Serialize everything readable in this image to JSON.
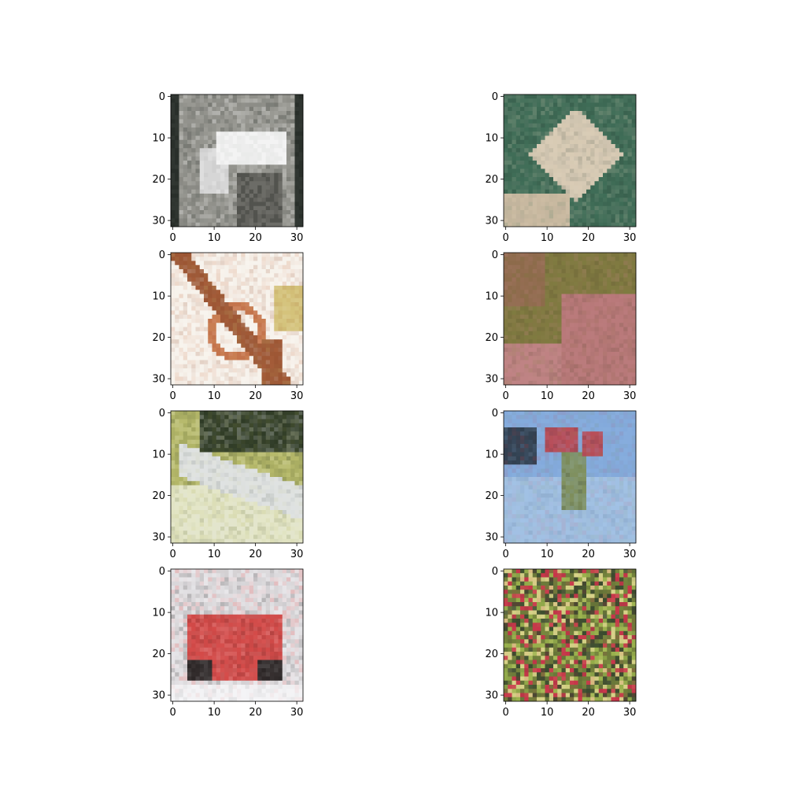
{
  "figure": {
    "background": "#ffffff",
    "panel_count": 8,
    "grid": {
      "rows": 4,
      "cols": 2
    },
    "axis": {
      "xlim": [
        -0.5,
        31.5
      ],
      "ylim": [
        31.5,
        -0.5
      ],
      "xticks": [
        0,
        10,
        20,
        30
      ],
      "yticks": [
        0,
        10,
        20,
        30
      ]
    },
    "panels": [
      {
        "name": "panel-1",
        "subject": "gray-white-object",
        "palette": [
          "#1e241f",
          "#dcdcdc",
          "#9a9a94",
          "#f4f4f4",
          "#5a5a55"
        ]
      },
      {
        "name": "panel-2",
        "subject": "beige-object-on-green",
        "palette": [
          "#3f6d57",
          "#d9ccb6",
          "#8f8f86",
          "#2a3a31",
          "#c9b9a0"
        ]
      },
      {
        "name": "panel-3",
        "subject": "pale-orange-shapes",
        "palette": [
          "#eeeae0",
          "#c8774e",
          "#d4c27a",
          "#f8f4ee",
          "#9b5533"
        ]
      },
      {
        "name": "panel-4",
        "subject": "pink-animal",
        "palette": [
          "#8d6b4b",
          "#c08485",
          "#7f7b40",
          "#b9797a",
          "#5e4b33"
        ]
      },
      {
        "name": "panel-5",
        "subject": "white-animal-on-grass",
        "palette": [
          "#dfe2e2",
          "#b6b96a",
          "#2f3b26",
          "#e4e6c8",
          "#6d7542"
        ]
      },
      {
        "name": "panel-6",
        "subject": "bird-in-blue-sky",
        "palette": [
          "#83aadc",
          "#a2c2e6",
          "#b94d58",
          "#7f8f5c",
          "#314050"
        ]
      },
      {
        "name": "panel-7",
        "subject": "red-vehicle",
        "palette": [
          "#e8e7ea",
          "#d44a48",
          "#2c2626",
          "#9a8f8f",
          "#f4f4f6"
        ]
      },
      {
        "name": "panel-8",
        "subject": "colorful-foliage",
        "palette": [
          "#6e7b3a",
          "#c8354a",
          "#9ab24d",
          "#3a4a2e",
          "#d9d38a"
        ]
      }
    ]
  }
}
